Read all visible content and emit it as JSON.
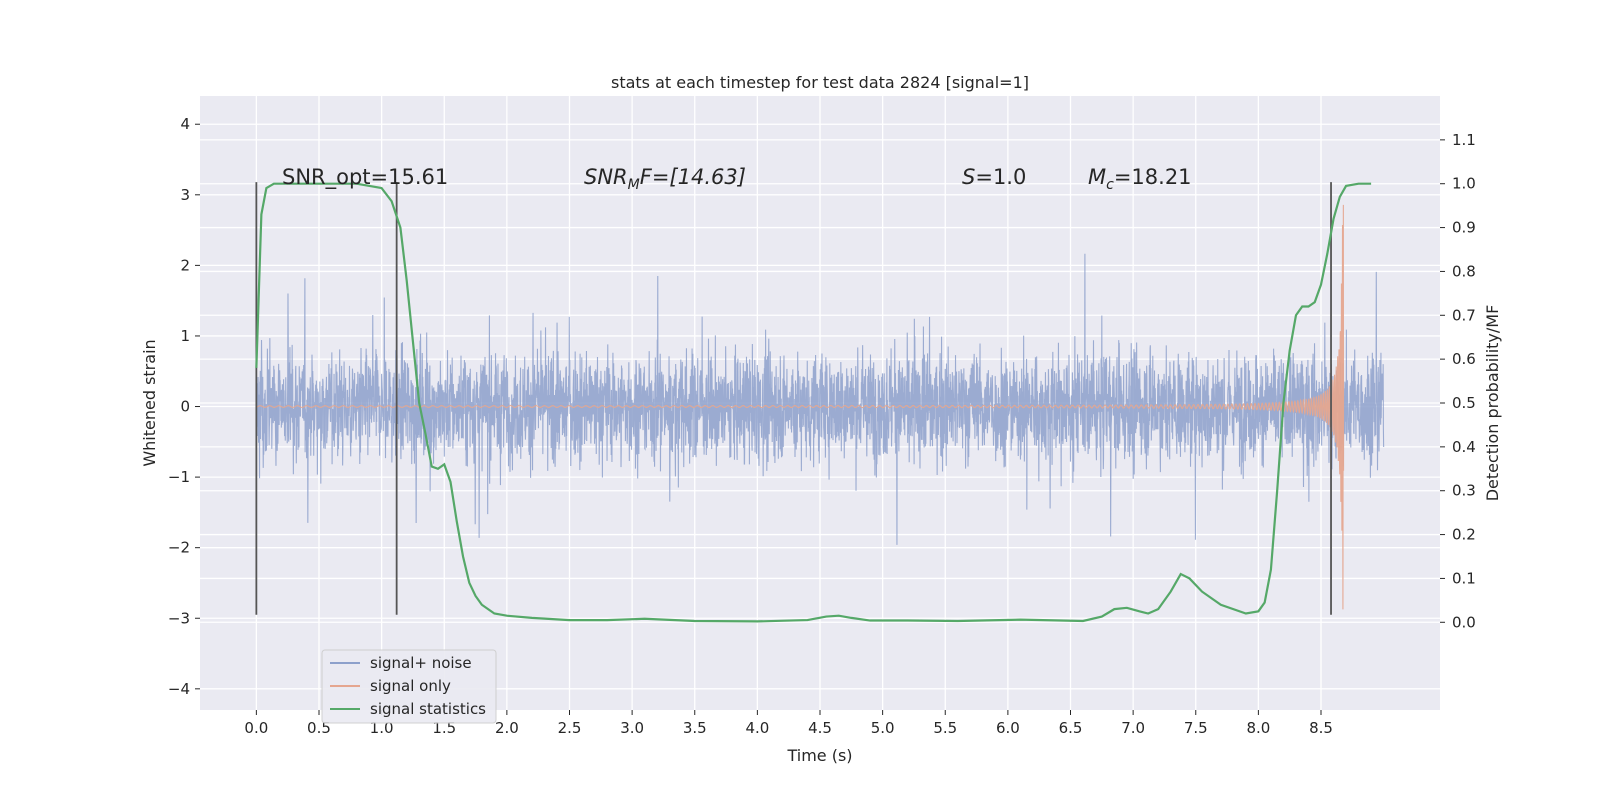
{
  "chart_data": {
    "type": "line",
    "title": "stats at each timestep for test data 2824 [signal=1]",
    "xlabel": "Time (s)",
    "ylabel": "Whitened strain",
    "ylabel_right": "Detection probability/MF",
    "xlim": [
      -0.45,
      9.45
    ],
    "ylim": [
      -4.3,
      4.4
    ],
    "ylim_right": [
      -0.2,
      1.2
    ],
    "xticks": [
      "0.0",
      "0.5",
      "1.0",
      "1.5",
      "2.0",
      "2.5",
      "3.0",
      "3.5",
      "4.0",
      "4.5",
      "5.0",
      "5.5",
      "6.0",
      "6.5",
      "7.0",
      "7.5",
      "8.0",
      "8.5"
    ],
    "yticks": [
      "4",
      "3",
      "2",
      "1",
      "0",
      "−1",
      "−2",
      "−3",
      "−4"
    ],
    "yticks_right": [
      "1.1",
      "1.0",
      "0.9",
      "0.8",
      "0.7",
      "0.6",
      "0.5",
      "0.4",
      "0.3",
      "0.2",
      "0.1",
      "0.0"
    ],
    "grid": true,
    "legend_position": "lower-left",
    "annotations": {
      "snr_opt": "SNR_opt=15.61",
      "snr_mf_base": "SNR",
      "snr_mf_sub": "M",
      "snr_mf_rest": "F=[14.63]",
      "s_var": "S",
      "s_rest": "=1.0",
      "mc_var": "M",
      "mc_sub": "c",
      "mc_rest": "=18.21"
    },
    "vlines_x": [
      0.0,
      1.12,
      8.58
    ],
    "series": [
      {
        "name": "signal+ noise",
        "color": "#8da0cb",
        "noise_std": 0.9,
        "x_range": [
          0.0,
          9.0
        ]
      },
      {
        "name": "signal only",
        "color": "#e5a68f",
        "x_range": [
          0.0,
          8.68
        ],
        "amplitude_start": 0.01,
        "amplitude_peak": 2.9,
        "peak_time": 8.66
      },
      {
        "name": "signal statistics",
        "color": "#55a868",
        "x": [
          0.0,
          0.04,
          0.08,
          0.14,
          0.2,
          0.3,
          0.5,
          0.8,
          1.0,
          1.08,
          1.15,
          1.2,
          1.25,
          1.3,
          1.35,
          1.4,
          1.45,
          1.5,
          1.55,
          1.6,
          1.65,
          1.7,
          1.75,
          1.8,
          1.85,
          1.9,
          2.0,
          2.2,
          2.5,
          2.8,
          3.1,
          3.5,
          4.0,
          4.4,
          4.55,
          4.65,
          4.75,
          4.9,
          5.2,
          5.6,
          6.1,
          6.6,
          6.75,
          6.85,
          6.95,
          7.05,
          7.12,
          7.2,
          7.3,
          7.38,
          7.45,
          7.55,
          7.7,
          7.9,
          8.0,
          8.05,
          8.1,
          8.15,
          8.2,
          8.25,
          8.3,
          8.35,
          8.4,
          8.45,
          8.5,
          8.55,
          8.6,
          8.65,
          8.7,
          8.8,
          8.9
        ],
        "values": [
          0.58,
          0.93,
          0.99,
          1.0,
          1.0,
          1.0,
          1.0,
          1.0,
          0.99,
          0.96,
          0.9,
          0.78,
          0.64,
          0.5,
          0.43,
          0.355,
          0.35,
          0.36,
          0.32,
          0.23,
          0.15,
          0.09,
          0.06,
          0.04,
          0.03,
          0.02,
          0.015,
          0.01,
          0.005,
          0.005,
          0.008,
          0.003,
          0.002,
          0.005,
          0.013,
          0.015,
          0.01,
          0.004,
          0.004,
          0.003,
          0.006,
          0.003,
          0.013,
          0.03,
          0.033,
          0.025,
          0.02,
          0.03,
          0.07,
          0.11,
          0.1,
          0.07,
          0.04,
          0.02,
          0.025,
          0.045,
          0.12,
          0.3,
          0.5,
          0.62,
          0.7,
          0.72,
          0.72,
          0.73,
          0.77,
          0.84,
          0.92,
          0.97,
          0.995,
          1.0,
          1.0
        ]
      }
    ]
  }
}
